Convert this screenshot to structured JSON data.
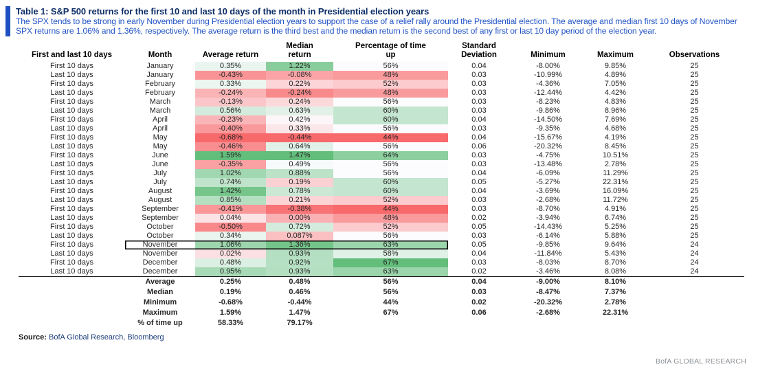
{
  "header": {
    "title": "Table 1: S&P 500 returns for the first 10 and last 10 days of the month in Presidential election years",
    "subtitle": "The SPX tends to be strong in early November during Presidential election years to support the case of a relief rally around the Presidential election. The average and median first 10 days of November SPX returns are 1.06% and 1.36%, respectively. The average return is the third best and the median return is the second best of any first or last 10 day period of the election year."
  },
  "colors": {
    "accent_bar": "#1e4fc2",
    "title_text": "#0d2d66",
    "subtitle_text": "#2355c6",
    "heat_low": "#F8696B",
    "heat_mid": "#FCFCFF",
    "heat_high": "#63BE7B"
  },
  "chart_data": {
    "type": "table",
    "columns": [
      "First and last 10 days",
      "Month",
      "Average return",
      "Median\nreturn",
      "Percentage of time\nup",
      "Standard\nDeviation",
      "Minimum",
      "Maximum",
      "Observations"
    ],
    "heatmap_columns": [
      2,
      3,
      4
    ],
    "rows": [
      [
        "First 10 days",
        "January",
        "0.35%",
        "1.22%",
        "56%",
        "0.04",
        "-8.00%",
        "9.85%",
        "25"
      ],
      [
        "Last 10 days",
        "January",
        "-0.43%",
        "-0.08%",
        "48%",
        "0.03",
        "-10.99%",
        "4.89%",
        "25"
      ],
      [
        "First 10 days",
        "February",
        "0.33%",
        "0.22%",
        "52%",
        "0.03",
        "-4.36%",
        "7.05%",
        "25"
      ],
      [
        "Last 10 days",
        "February",
        "-0.24%",
        "-0.24%",
        "48%",
        "0.03",
        "-12.44%",
        "4.42%",
        "25"
      ],
      [
        "First 10 days",
        "March",
        "-0.13%",
        "0.24%",
        "56%",
        "0.03",
        "-8.23%",
        "4.83%",
        "25"
      ],
      [
        "Last 10 days",
        "March",
        "0.56%",
        "0.63%",
        "60%",
        "0.03",
        "-9.86%",
        "8.96%",
        "25"
      ],
      [
        "First 10 days",
        "April",
        "-0.23%",
        "0.42%",
        "60%",
        "0.04",
        "-14.50%",
        "7.69%",
        "25"
      ],
      [
        "Last 10 days",
        "April",
        "-0.40%",
        "0.33%",
        "56%",
        "0.03",
        "-9.35%",
        "4.68%",
        "25"
      ],
      [
        "First 10 days",
        "May",
        "-0.68%",
        "-0.44%",
        "44%",
        "0.04",
        "-15.67%",
        "4.19%",
        "25"
      ],
      [
        "Last 10 days",
        "May",
        "-0.46%",
        "0.64%",
        "56%",
        "0.06",
        "-20.32%",
        "8.45%",
        "25"
      ],
      [
        "First 10 days",
        "June",
        "1.59%",
        "1.47%",
        "64%",
        "0.03",
        "-4.75%",
        "10.51%",
        "25"
      ],
      [
        "Last 10 days",
        "June",
        "-0.35%",
        "0.49%",
        "56%",
        "0.03",
        "-13.48%",
        "2.78%",
        "25"
      ],
      [
        "First 10 days",
        "July",
        "1.02%",
        "0.88%",
        "56%",
        "0.04",
        "-6.09%",
        "11.29%",
        "25"
      ],
      [
        "Last 10 days",
        "July",
        "0.74%",
        "0.19%",
        "60%",
        "0.05",
        "-5.27%",
        "22.31%",
        "25"
      ],
      [
        "First 10 days",
        "August",
        "1.42%",
        "0.78%",
        "60%",
        "0.04",
        "-3.69%",
        "16.09%",
        "25"
      ],
      [
        "Last 10 days",
        "August",
        "0.85%",
        "0.21%",
        "52%",
        "0.03",
        "-2.68%",
        "11.72%",
        "25"
      ],
      [
        "First 10 days",
        "September",
        "-0.41%",
        "-0.38%",
        "44%",
        "0.03",
        "-8.70%",
        "4.91%",
        "25"
      ],
      [
        "Last 10 days",
        "September",
        "0.04%",
        "0.00%",
        "48%",
        "0.02",
        "-3.94%",
        "6.74%",
        "25"
      ],
      [
        "First 10 days",
        "October",
        "-0.50%",
        "0.72%",
        "52%",
        "0.05",
        "-14.43%",
        "5.25%",
        "25"
      ],
      [
        "Last 10 days",
        "October",
        "0.34%",
        "0.087%",
        "56%",
        "0.03",
        "-6.14%",
        "5.88%",
        "25"
      ],
      [
        "First 10 days",
        "November",
        "1.06%",
        "1.36%",
        "63%",
        "0.05",
        "-9.85%",
        "9.64%",
        "24"
      ],
      [
        "Last 10 days",
        "November",
        "0.02%",
        "0.93%",
        "58%",
        "0.04",
        "-11.84%",
        "5.43%",
        "24"
      ],
      [
        "First 10 days",
        "December",
        "0.48%",
        "0.92%",
        "67%",
        "0.03",
        "-8.03%",
        "8.70%",
        "24"
      ],
      [
        "Last 10 days",
        "December",
        "0.95%",
        "0.93%",
        "63%",
        "0.02",
        "-3.46%",
        "8.08%",
        "24"
      ]
    ],
    "summary_rows": [
      [
        "",
        "Average",
        "0.25%",
        "0.48%",
        "56%",
        "0.04",
        "-9.00%",
        "8.10%",
        ""
      ],
      [
        "",
        "Median",
        "0.19%",
        "0.46%",
        "56%",
        "0.03",
        "-8.47%",
        "7.37%",
        ""
      ],
      [
        "",
        "Minimum",
        "-0.68%",
        "-0.44%",
        "44%",
        "0.02",
        "-20.32%",
        "2.78%",
        ""
      ],
      [
        "",
        "Maximum",
        "1.59%",
        "1.47%",
        "67%",
        "0.06",
        "-2.68%",
        "22.31%",
        ""
      ],
      [
        "",
        "% of time up",
        "58.33%",
        "79.17%",
        "",
        "",
        "",
        "",
        ""
      ]
    ],
    "highlight": {
      "row": 20,
      "col_start": 1,
      "col_end": 4
    }
  },
  "footer": {
    "source_label": "Source:",
    "source_text": " BofA Global Research, Bloomberg",
    "brand": "BofA GLOBAL RESEARCH"
  }
}
